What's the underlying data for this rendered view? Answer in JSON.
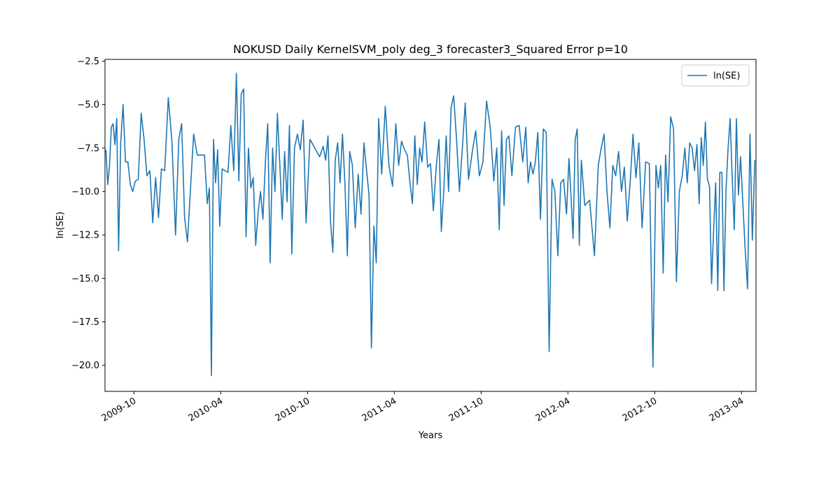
{
  "chart_data": {
    "type": "line",
    "title": "NOKUSD Daily KernelSVM_poly deg_3 forecaster3_Squared Error p=10",
    "xlabel": "Years",
    "ylabel": "ln(SE)",
    "legend": "upper right",
    "grid": false,
    "xlim": [
      "2009-08",
      "2013-05"
    ],
    "xticks": [
      "2009-10",
      "2010-04",
      "2010-10",
      "2011-04",
      "2011-10",
      "2012-04",
      "2012-10",
      "2013-04"
    ],
    "ylim": [
      -21.5,
      -2.4
    ],
    "yticks": [
      {
        "value": -20,
        "label": "−20.0"
      },
      {
        "value": -17.5,
        "label": "−17.5"
      },
      {
        "value": -15,
        "label": "−15.0"
      },
      {
        "value": -12.5,
        "label": "−12.5"
      },
      {
        "value": -10,
        "label": "−10.0"
      },
      {
        "value": -7.5,
        "label": "−7.5"
      },
      {
        "value": -5,
        "label": "−5.0"
      },
      {
        "value": -2.5,
        "label": "−2.5"
      }
    ],
    "x": [
      "2009-08",
      "2009-08",
      "2009-08",
      "2009-08",
      "2009-08",
      "2009-08",
      "2009-08",
      "2009-08",
      "2009-09",
      "2009-09",
      "2009-09",
      "2009-09",
      "2009-09",
      "2009-09",
      "2009-10",
      "2009-10",
      "2009-10",
      "2009-10",
      "2009-10",
      "2009-11",
      "2009-11",
      "2009-11",
      "2009-11",
      "2009-11",
      "2009-12",
      "2009-12",
      "2009-12",
      "2009-12",
      "2010-01",
      "2010-01",
      "2010-01",
      "2010-01",
      "2010-01",
      "2010-02",
      "2010-02",
      "2010-02",
      "2010-02",
      "2010-03",
      "2010-03",
      "2010-03",
      "2010-03",
      "2010-03",
      "2010-03",
      "2010-03",
      "2010-04",
      "2010-04",
      "2010-04",
      "2010-04",
      "2010-04",
      "2010-05",
      "2010-05",
      "2010-05",
      "2010-05",
      "2010-05",
      "2010-05",
      "2010-06",
      "2010-06",
      "2010-06",
      "2010-06",
      "2010-06",
      "2010-06",
      "2010-07",
      "2010-07",
      "2010-07",
      "2010-07",
      "2010-07",
      "2010-07",
      "2010-08",
      "2010-08",
      "2010-08",
      "2010-08",
      "2010-08",
      "2010-08",
      "2010-09",
      "2010-09",
      "2010-09",
      "2010-09",
      "2010-09",
      "2010-10",
      "2010-10",
      "2010-10",
      "2010-11",
      "2010-11",
      "2010-11",
      "2010-11",
      "2010-11",
      "2010-11",
      "2010-12",
      "2010-12",
      "2010-12",
      "2010-12",
      "2010-12",
      "2010-12",
      "2011-01",
      "2011-01",
      "2011-01",
      "2011-01",
      "2011-01",
      "2011-02",
      "2011-02",
      "2011-02",
      "2011-02",
      "2011-02",
      "2011-02",
      "2011-03",
      "2011-03",
      "2011-03",
      "2011-03",
      "2011-04",
      "2011-04",
      "2011-04",
      "2011-04",
      "2011-04",
      "2011-05",
      "2011-05",
      "2011-05",
      "2011-05",
      "2011-05",
      "2011-05",
      "2011-06",
      "2011-06",
      "2011-06",
      "2011-06",
      "2011-06",
      "2011-07",
      "2011-07",
      "2011-07",
      "2011-07",
      "2011-07",
      "2011-07",
      "2011-08",
      "2011-08",
      "2011-08",
      "2011-08",
      "2011-08",
      "2011-09",
      "2011-09",
      "2011-09",
      "2011-09",
      "2011-10",
      "2011-10",
      "2011-10",
      "2011-10",
      "2011-11",
      "2011-11",
      "2011-11",
      "2011-11",
      "2011-11",
      "2011-11",
      "2011-12",
      "2011-12",
      "2011-12",
      "2011-12",
      "2012-01",
      "2012-01",
      "2012-01",
      "2012-01",
      "2012-01",
      "2012-01",
      "2012-02",
      "2012-02",
      "2012-02",
      "2012-02",
      "2012-02",
      "2012-03",
      "2012-03",
      "2012-03",
      "2012-03",
      "2012-03",
      "2012-04",
      "2012-04",
      "2012-04",
      "2012-04",
      "2012-04",
      "2012-04",
      "2012-04",
      "2012-05",
      "2012-05",
      "2012-05",
      "2012-06",
      "2012-06",
      "2012-06",
      "2012-06",
      "2012-06",
      "2012-07",
      "2012-07",
      "2012-07",
      "2012-07",
      "2012-07",
      "2012-08",
      "2012-08",
      "2012-08",
      "2012-08",
      "2012-08",
      "2012-09",
      "2012-09",
      "2012-09",
      "2012-09",
      "2012-10",
      "2012-10",
      "2012-10",
      "2012-10",
      "2012-10",
      "2012-10",
      "2012-11",
      "2012-11",
      "2012-11",
      "2012-11",
      "2012-11",
      "2012-12",
      "2012-12",
      "2012-12",
      "2012-12",
      "2012-12",
      "2012-12",
      "2013-01",
      "2013-01",
      "2013-01",
      "2013-01",
      "2013-01",
      "2013-01",
      "2013-01",
      "2013-02",
      "2013-02",
      "2013-02",
      "2013-02",
      "2013-02",
      "2013-02",
      "2013-02",
      "2013-03",
      "2013-03",
      "2013-03",
      "2013-03",
      "2013-03",
      "2013-03",
      "2013-03",
      "2013-04",
      "2013-04",
      "2013-04",
      "2013-04",
      "2013-04",
      "2013-04"
    ],
    "series": [
      {
        "name": "ln(SE)",
        "color": "#1f77b4",
        "values": [
          -7.6,
          -9.6,
          -8.5,
          -6.3,
          -6.1,
          -7.3,
          -5.8,
          -13.4,
          -7.2,
          -5.0,
          -8.3,
          -8.3,
          -9.6,
          -10.0,
          -9.4,
          -9.3,
          -5.5,
          -7.0,
          -9.1,
          -8.8,
          -11.8,
          -9.2,
          -11.5,
          -8.7,
          -8.8,
          -4.6,
          -7.1,
          -12.5,
          -7.0,
          -6.1,
          -11.5,
          -12.9,
          -10.0,
          -6.7,
          -7.9,
          -7.9,
          -7.9,
          -10.7,
          -9.8,
          -20.6,
          -7.0,
          -9.5,
          -7.6,
          -12.0,
          -8.7,
          -8.8,
          -8.9,
          -6.2,
          -8.8,
          -3.2,
          -9.4,
          -4.4,
          -4.1,
          -12.6,
          -7.5,
          -9.8,
          -9.2,
          -13.1,
          -11.2,
          -10.0,
          -11.6,
          -8.3,
          -6.1,
          -14.1,
          -7.5,
          -10.0,
          -5.5,
          -8.4,
          -11.6,
          -7.7,
          -10.6,
          -6.2,
          -13.6,
          -7.5,
          -6.7,
          -7.6,
          -5.9,
          -11.8,
          -7.0,
          -7.5,
          -8.0,
          -7.4,
          -8.2,
          -6.8,
          -11.7,
          -13.5,
          -8.2,
          -7.2,
          -9.5,
          -6.7,
          -9.5,
          -13.7,
          -7.7,
          -8.5,
          -12.1,
          -9.0,
          -11.3,
          -7.2,
          -8.8,
          -10.2,
          -19.0,
          -12.0,
          -14.1,
          -5.8,
          -9.0,
          -5.1,
          -8.5,
          -9.7,
          -6.1,
          -8.5,
          -7.1,
          -7.6,
          -7.9,
          -9.5,
          -10.7,
          -6.8,
          -9.6,
          -7.5,
          -8.3,
          -6.0,
          -8.6,
          -8.4,
          -11.1,
          -8.5,
          -7.0,
          -12.3,
          -10.0,
          -6.8,
          -10.0,
          -5.2,
          -4.5,
          -7.0,
          -10.0,
          -7.5,
          -4.9,
          -9.3,
          -7.8,
          -6.5,
          -9.1,
          -8.3,
          -4.8,
          -6.3,
          -9.4,
          -7.5,
          -12.2,
          -6.5,
          -10.8,
          -7.0,
          -6.8,
          -9.1,
          -6.3,
          -6.2,
          -8.3,
          -6.3,
          -9.5,
          -8.3,
          -9.0,
          -8.3,
          -6.6,
          -11.6,
          -6.4,
          -6.6,
          -19.2,
          -9.3,
          -10.0,
          -13.7,
          -9.5,
          -9.3,
          -11.3,
          -8.1,
          -10.3,
          -12.7,
          -7.0,
          -6.4,
          -13.1,
          -8.2,
          -10.8,
          -10.5,
          -13.7,
          -8.5,
          -7.5,
          -6.7,
          -10.0,
          -12.1,
          -8.5,
          -9.1,
          -7.7,
          -10.0,
          -8.6,
          -11.7,
          -9.5,
          -6.7,
          -9.2,
          -7.2,
          -12.1,
          -8.3,
          -8.4,
          -20.1,
          -8.5,
          -9.8,
          -8.5,
          -14.7,
          -7.9,
          -10.6,
          -5.7,
          -6.4,
          -15.2,
          -10.0,
          -9.1,
          -7.5,
          -9.5,
          -7.2,
          -7.5,
          -8.8,
          -7.3,
          -10.7,
          -6.9,
          -8.5,
          -6.0,
          -9.3,
          -9.7,
          -15.3,
          -12.2,
          -9.5,
          -15.7,
          -8.9,
          -8.9,
          -15.7,
          -9.9,
          -7.5,
          -5.8,
          -9.2,
          -12.2,
          -5.8,
          -10.2,
          -8.0,
          -10.6,
          -13.3,
          -15.6,
          -6.7,
          -12.8,
          -8.2
        ]
      }
    ]
  }
}
